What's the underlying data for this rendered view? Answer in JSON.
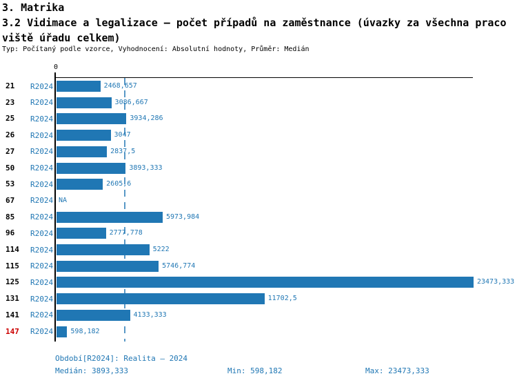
{
  "header": {
    "title": "3. Matrika",
    "subtitle_line1": "3.2 Vidimace a legalizace – počet případů na zaměstnance (úvazky za všechna praco",
    "subtitle_line2": "viště úřadu celkem)",
    "meta": "Typ: Počítaný podle vzorce, Vyhodnocení: Absolutní hodnoty, Průměr: Medián"
  },
  "colors": {
    "accent": "#2077b4",
    "bar": "#2077b4",
    "highlight": "#cc0000",
    "axis": "#000000"
  },
  "chart_data": {
    "type": "bar",
    "orientation": "horizontal",
    "title": "3.2 Vidimace a legalizace – počet případů na zaměstnance (úvazky za všechna pracoviště úřadu celkem)",
    "period_label": "R2024",
    "categories": [
      "21",
      "23",
      "25",
      "26",
      "27",
      "50",
      "53",
      "67",
      "85",
      "96",
      "114",
      "115",
      "125",
      "131",
      "141",
      "147"
    ],
    "values": [
      2468.657,
      3086.667,
      3934.286,
      3047,
      2837.5,
      3893.333,
      2605.6,
      null,
      5973.984,
      2777.778,
      5222,
      5746.774,
      23473.333,
      11702.5,
      4133.333,
      598.182
    ],
    "value_labels": [
      "2468,657",
      "3086,667",
      "3934,286",
      "3047",
      "2837,5",
      "3893,333",
      "2605,6",
      "NA",
      "5973,984",
      "2777,778",
      "5222",
      "5746,774",
      "23473,333",
      "11702,5",
      "4133,333",
      "598,182"
    ],
    "highlighted_categories": [
      "147"
    ],
    "axis_origin_label": "0",
    "xlim": [
      0,
      23473.333
    ],
    "median": 3893.333,
    "grid": false,
    "median_line": "dashed"
  },
  "footer": {
    "period_line": "Období[R2024]: Realita – 2024",
    "median_label": "Medián: 3893,333",
    "min_label": "Min: 598,182",
    "max_label": "Max: 23473,333"
  }
}
